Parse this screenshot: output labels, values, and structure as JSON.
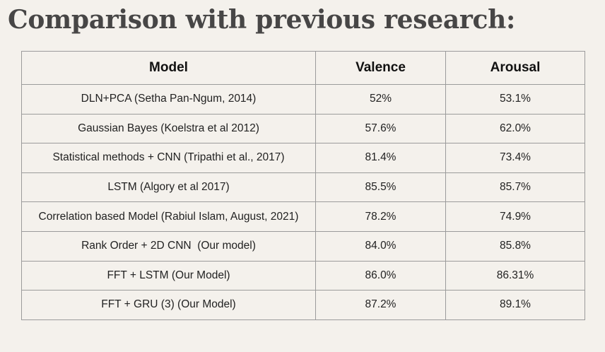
{
  "title": "Comparison with previous research:",
  "table": {
    "headers": [
      "Model",
      "Valence",
      "Arousal"
    ],
    "rows": [
      [
        "DLN+PCA (Setha Pan-Ngum, 2014)",
        "52%",
        "53.1%"
      ],
      [
        "Gaussian Bayes (Koelstra et al 2012)",
        "57.6%",
        "62.0%"
      ],
      [
        "Statistical methods + CNN (Tripathi et al., 2017)",
        "81.4%",
        "73.4%"
      ],
      [
        "LSTM (Algory et al 2017)",
        "85.5%",
        "85.7%"
      ],
      [
        "Correlation based Model (Rabiul Islam, August, 2021)",
        "78.2%",
        "74.9%"
      ],
      [
        "Rank Order + 2D CNN  (Our model)",
        "84.0%",
        "85.8%"
      ],
      [
        "FFT + LSTM (Our Model)",
        "86.0%",
        "86.31%"
      ],
      [
        "FFT + GRU (3) (Our Model)",
        "87.2%",
        "89.1%"
      ]
    ]
  }
}
